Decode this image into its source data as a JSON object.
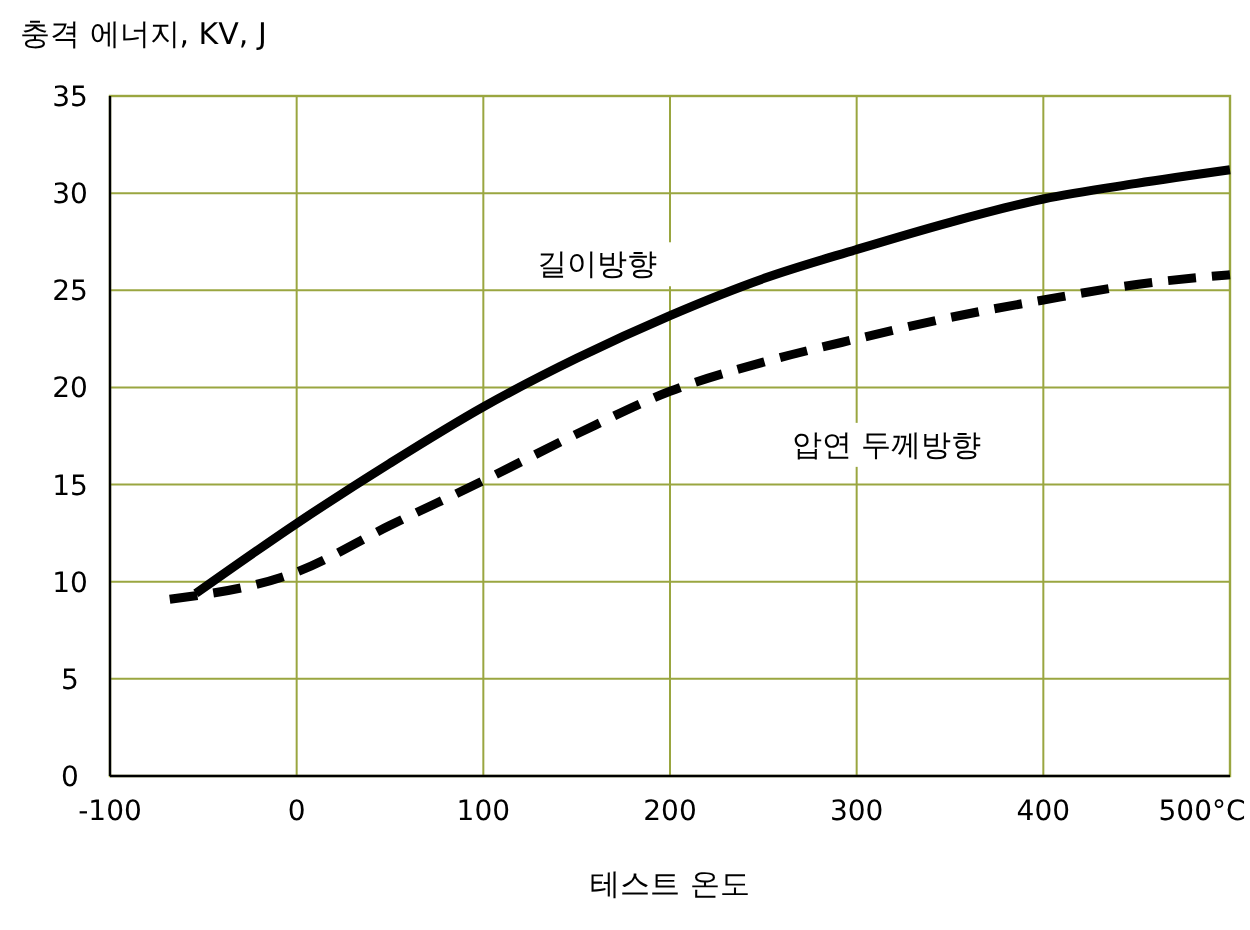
{
  "chart_data": {
    "type": "line",
    "ylabel": "충격 에너지, KV, J",
    "xlabel": "테스트 온도",
    "xlim": [
      -100,
      500
    ],
    "xticks": [
      -100,
      0,
      100,
      200,
      300,
      400,
      {
        "value": 500,
        "label": "500°C"
      }
    ],
    "ylim": [
      0,
      35
    ],
    "yticks": [
      0,
      5,
      10,
      15,
      20,
      25,
      30,
      35
    ],
    "grid": true,
    "series": [
      {
        "name": "길이방향",
        "color": "#000000",
        "line_style": "solid",
        "x": [
          -54,
          0,
          50,
          100,
          150,
          200,
          250,
          300,
          350,
          400,
          450,
          500
        ],
        "values": [
          9.4,
          13.0,
          16.1,
          19.0,
          21.5,
          23.7,
          25.6,
          27.1,
          28.5,
          29.7,
          30.5,
          31.2
        ]
      },
      {
        "name": "압연 두께방향",
        "color": "#000000",
        "line_style": "dashed",
        "x": [
          -68,
          0,
          50,
          100,
          150,
          200,
          250,
          300,
          350,
          400,
          450,
          500
        ],
        "values": [
          9.1,
          10.5,
          12.9,
          15.2,
          17.6,
          19.8,
          21.3,
          22.5,
          23.6,
          24.5,
          25.3,
          25.8
        ]
      }
    ]
  }
}
